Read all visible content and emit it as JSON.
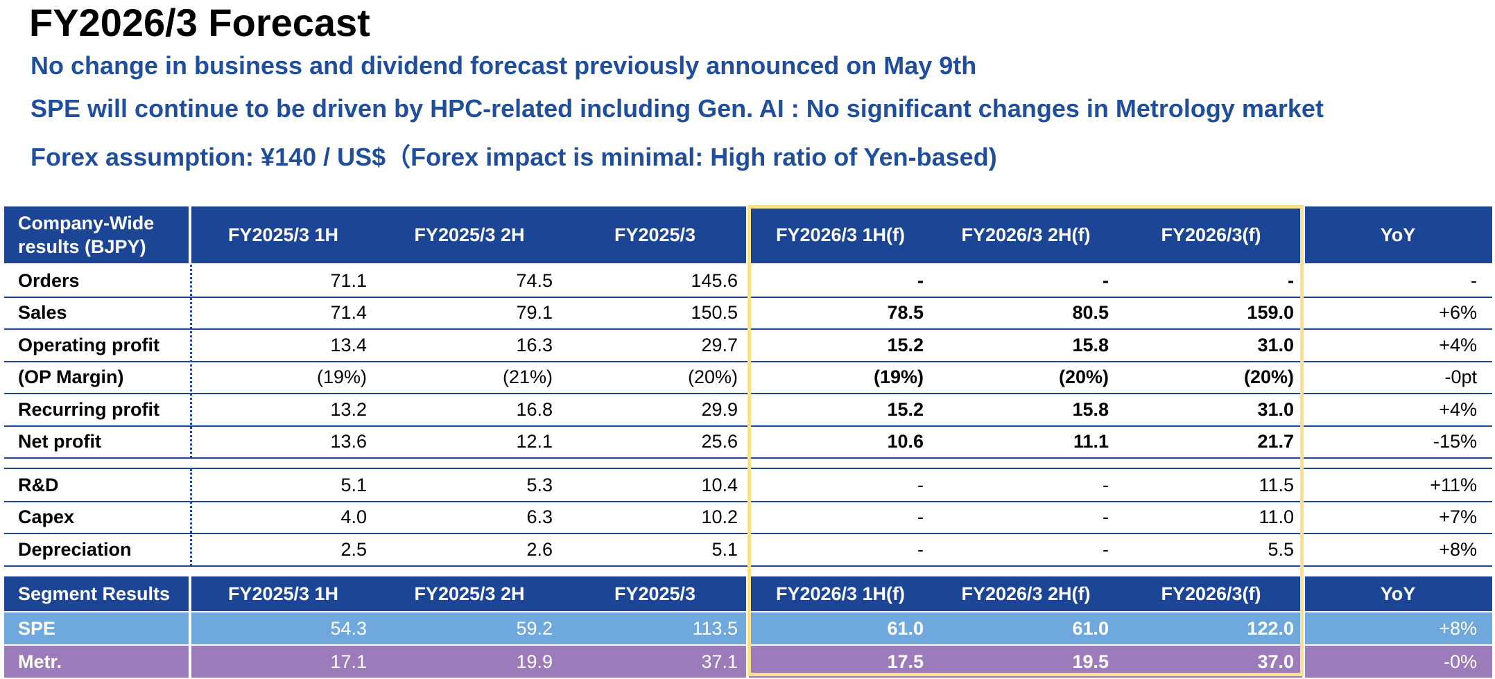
{
  "title": "FY2026/3 Forecast",
  "bullets": [
    "No change in business and dividend forecast previously announced on May 9th",
    "SPE will continue to be driven by HPC-related including Gen. AI : No significant changes in Metrology market",
    "Forex assumption: ¥140 / US$（Forex impact is minimal: High ratio of Yen-based)"
  ],
  "company_table": {
    "header": [
      "Company-Wide results (BJPY)",
      "FY2025/3 1H",
      "FY2025/3 2H",
      "FY2025/3",
      "FY2026/3 1H(f)",
      "FY2026/3 2H(f)",
      "FY2026/3(f)",
      "YoY"
    ],
    "rows": [
      [
        "Orders",
        "71.1",
        "74.5",
        "145.6",
        "-",
        "-",
        "-",
        "-"
      ],
      [
        "Sales",
        "71.4",
        "79.1",
        "150.5",
        "78.5",
        "80.5",
        "159.0",
        "+6%"
      ],
      [
        "Operating profit",
        "13.4",
        "16.3",
        "29.7",
        "15.2",
        "15.8",
        "31.0",
        "+4%"
      ],
      [
        "(OP Margin)",
        "(19%)",
        "(21%)",
        "(20%)",
        "(19%)",
        "(20%)",
        "(20%)",
        "-0pt"
      ],
      [
        "Recurring profit",
        "13.2",
        "16.8",
        "29.9",
        "15.2",
        "15.8",
        "31.0",
        "+4%"
      ],
      [
        "Net profit",
        "13.6",
        "12.1",
        "25.6",
        "10.6",
        "11.1",
        "21.7",
        "-15%"
      ]
    ],
    "rows2": [
      [
        "R&D",
        "5.1",
        "5.3",
        "10.4",
        "-",
        "-",
        "11.5",
        "+11%"
      ],
      [
        "Capex",
        "4.0",
        "6.3",
        "10.2",
        "-",
        "-",
        "11.0",
        "+7%"
      ],
      [
        "Depreciation",
        "2.5",
        "2.6",
        "5.1",
        "-",
        "-",
        "5.5",
        "+8%"
      ]
    ]
  },
  "segment_table": {
    "header": [
      "Segment Results",
      "FY2025/3 1H",
      "FY2025/3 2H",
      "FY2025/3",
      "FY2026/3 1H(f)",
      "FY2026/3 2H(f)",
      "FY2026/3(f)",
      "YoY"
    ],
    "rows": [
      [
        "SPE",
        "54.3",
        "59.2",
        "113.5",
        "61.0",
        "61.0",
        "122.0",
        "+8%"
      ],
      [
        "Metr.",
        "17.1",
        "19.9",
        "37.1",
        "17.5",
        "19.5",
        "37.0",
        "-0%"
      ]
    ]
  },
  "colors": {
    "header_bg": "#1c4596",
    "bullet_text": "#1f4e9c",
    "spe_row": "#6fa8dc",
    "metr_row": "#9b7bba",
    "highlight_border": "#f7e08e"
  }
}
